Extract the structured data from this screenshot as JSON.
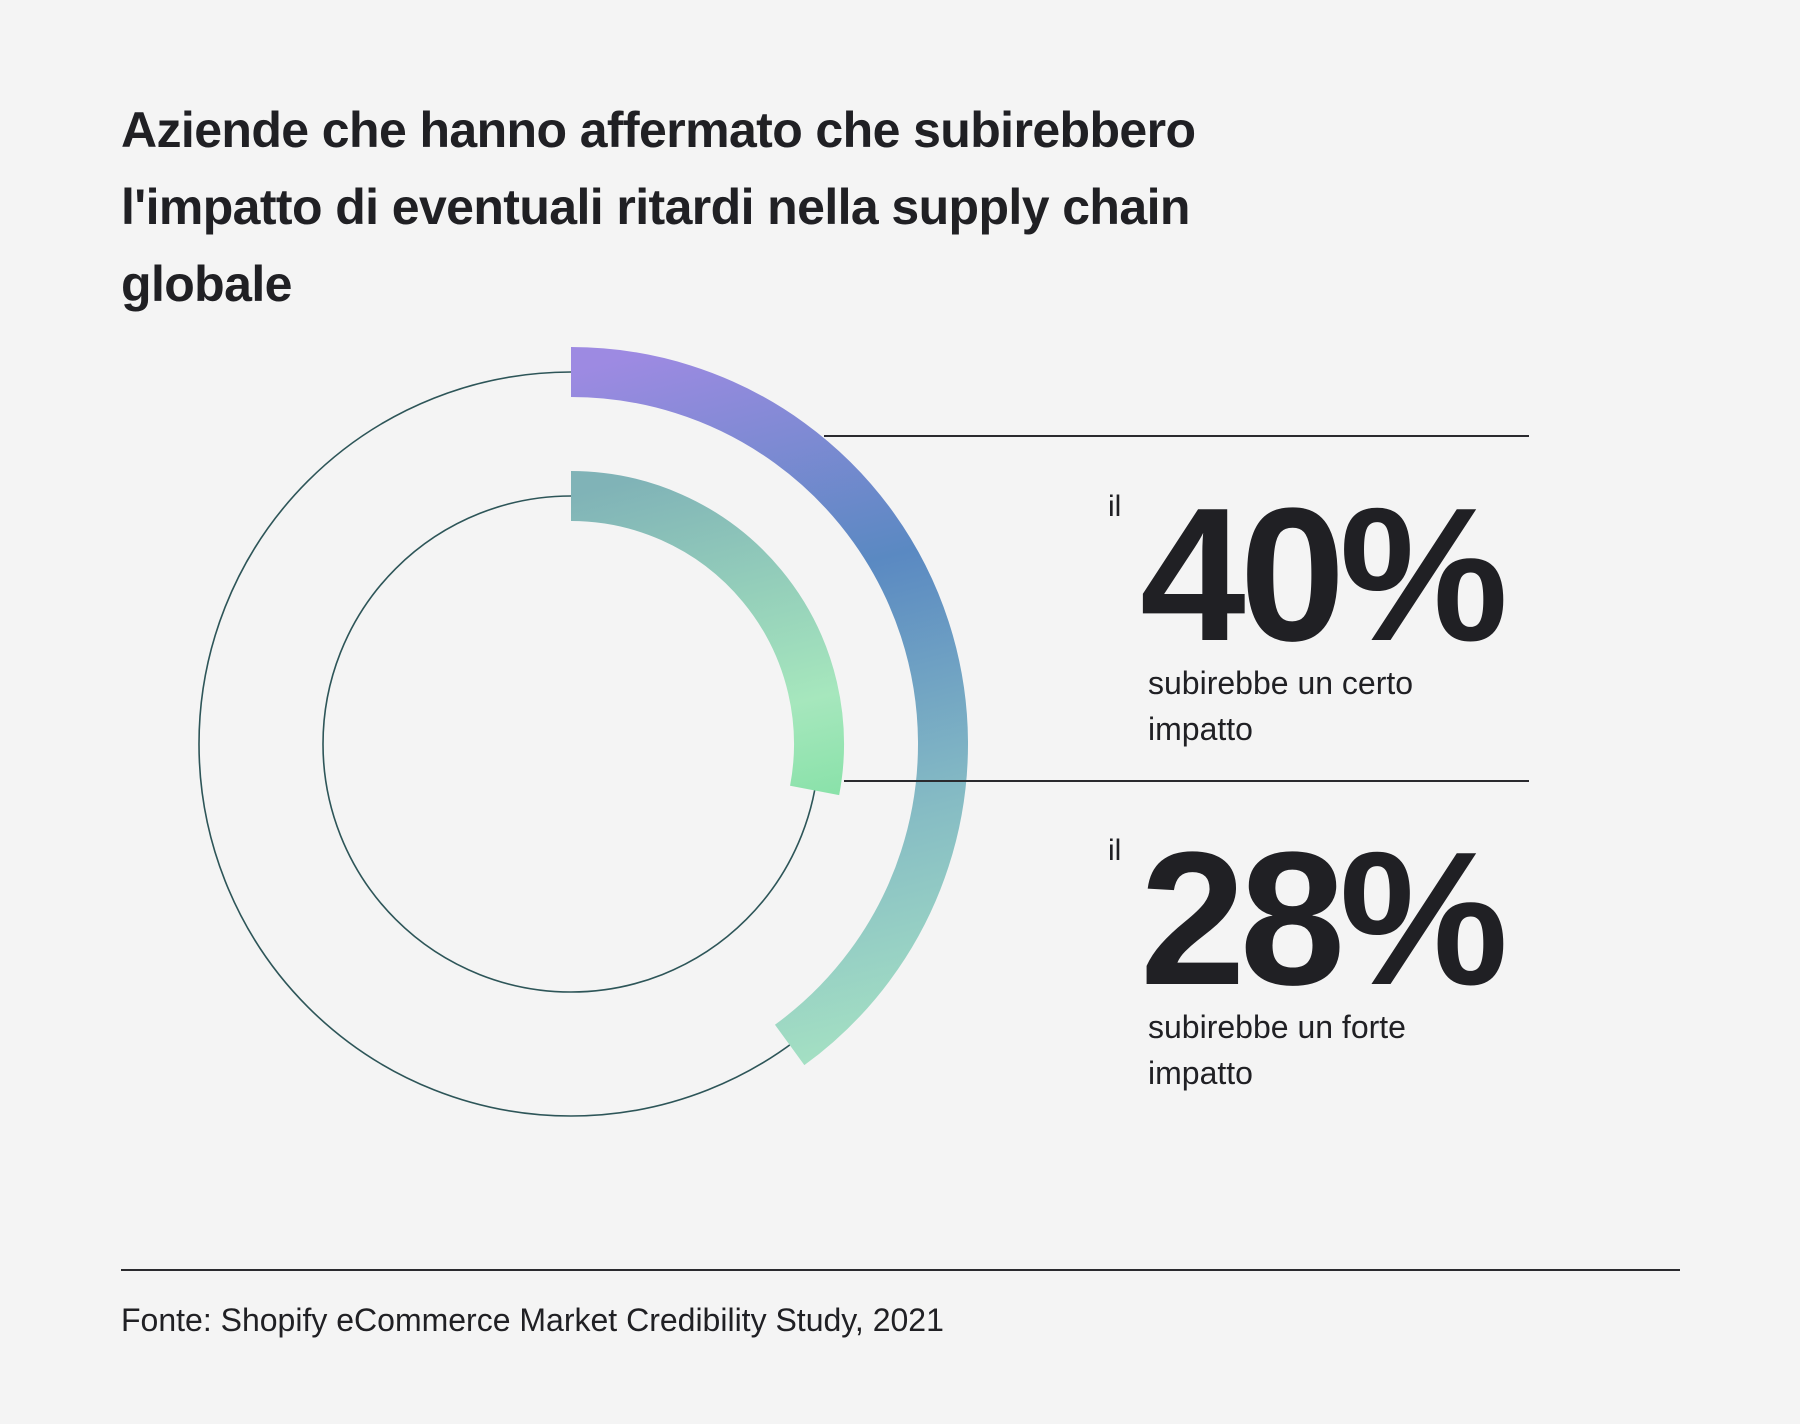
{
  "chart_data": {
    "type": "radial",
    "title": "Aziende che hanno affermato che subirebbero l'impatto di eventuali ritardi nella supply chain globale",
    "categories": [
      "subirebbe un certo impatto",
      "subirebbe un forte impatto"
    ],
    "values": [
      40,
      28
    ],
    "value_labels": [
      "40%",
      "28%"
    ],
    "value_prefix": "il",
    "max": 100,
    "gradients": [
      [
        "#9d8ae2",
        "#5a89c2",
        "#86bcc4",
        "#a9e6c3"
      ],
      [
        "#80b3b7",
        "#a6e7bd",
        "#5cd98a"
      ]
    ],
    "track_color": "#2d5558",
    "source": "Fonte: Shopify eCommerce Market Credibility Study, 2021"
  }
}
